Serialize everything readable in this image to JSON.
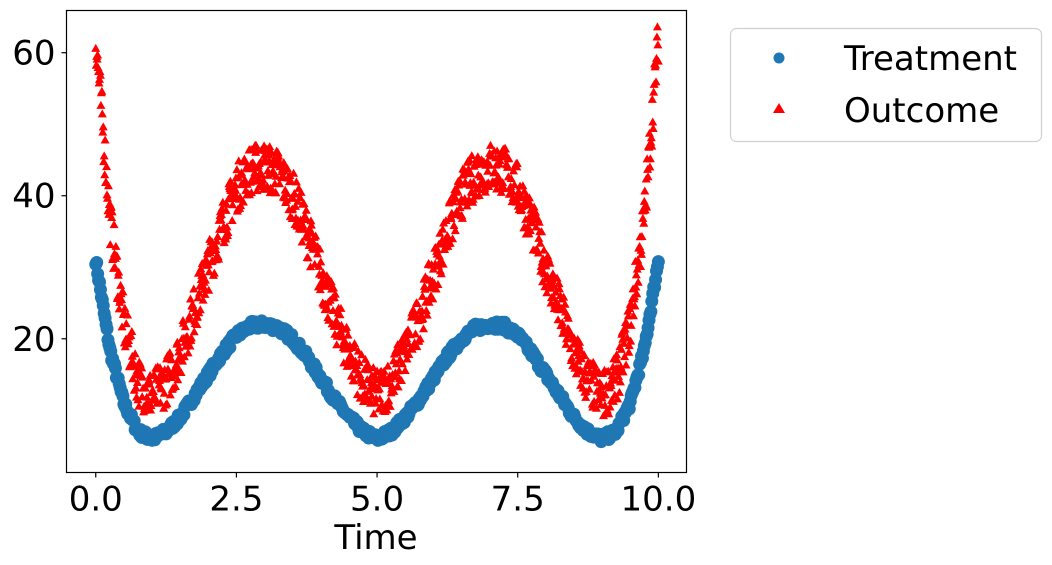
{
  "chart_data": {
    "type": "scatter",
    "title": "",
    "xlabel": "Time",
    "ylabel": "",
    "xlim": [
      -0.52,
      10.5
    ],
    "ylim": [
      1.3,
      65.9
    ],
    "xticks": [
      0.0,
      2.5,
      5.0,
      7.5,
      10.0
    ],
    "xtick_labels": [
      "0.0",
      "2.5",
      "5.0",
      "7.5",
      "10.0"
    ],
    "yticks": [
      20,
      40,
      60
    ],
    "ytick_labels": [
      "20",
      "40",
      "60"
    ],
    "grid": false,
    "legend_position": "outside upper right",
    "x": [
      0.0,
      0.25,
      0.5,
      0.75,
      1.0,
      1.25,
      1.5,
      1.75,
      2.0,
      2.25,
      2.5,
      2.75,
      3.0,
      3.25,
      3.5,
      3.75,
      4.0,
      4.25,
      4.5,
      4.75,
      5.0,
      5.25,
      5.5,
      5.75,
      6.0,
      6.25,
      6.5,
      6.75,
      7.0,
      7.25,
      7.5,
      7.75,
      8.0,
      8.25,
      8.5,
      8.75,
      9.0,
      9.25,
      9.5,
      9.75,
      10.0
    ],
    "series": [
      {
        "name": "Treatment",
        "marker": "circle",
        "color": "#1f77b4",
        "values": [
          31,
          18.5,
          11,
          7,
          6,
          7,
          9,
          12,
          15,
          18,
          20.5,
          21.8,
          22,
          21.5,
          20,
          17.5,
          14.5,
          11.5,
          9,
          7,
          6,
          7,
          9,
          11.5,
          14.5,
          17.5,
          20,
          21.5,
          22,
          21.8,
          20.5,
          18,
          15,
          12,
          9,
          7,
          6,
          7,
          11,
          18.5,
          31
        ]
      },
      {
        "name": "Outcome",
        "marker": "triangle",
        "color": "#ff0000",
        "values": [
          62,
          37,
          22,
          14,
          12,
          14,
          18,
          24,
          30,
          36,
          41,
          43.6,
          44,
          43,
          40,
          35,
          29,
          23,
          18,
          14,
          12,
          14,
          18,
          23,
          29,
          35,
          40,
          43,
          44,
          43.6,
          41,
          36,
          30,
          24,
          18,
          14,
          12,
          14,
          22,
          37,
          62
        ]
      }
    ]
  },
  "legend": {
    "items": [
      {
        "label": "Treatment",
        "color": "#1f77b4"
      },
      {
        "label": "Outcome",
        "color": "#ff0000"
      }
    ]
  }
}
